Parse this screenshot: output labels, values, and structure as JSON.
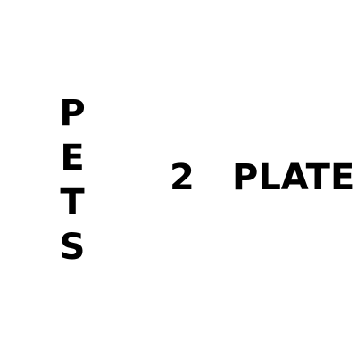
{
  "vertical_text": {
    "letters": [
      "P",
      "E",
      "T",
      "S"
    ]
  },
  "number_label": "2",
  "horizontal_text": "PLATE",
  "colors": {
    "background": "#ffffff",
    "text": "#000000"
  }
}
